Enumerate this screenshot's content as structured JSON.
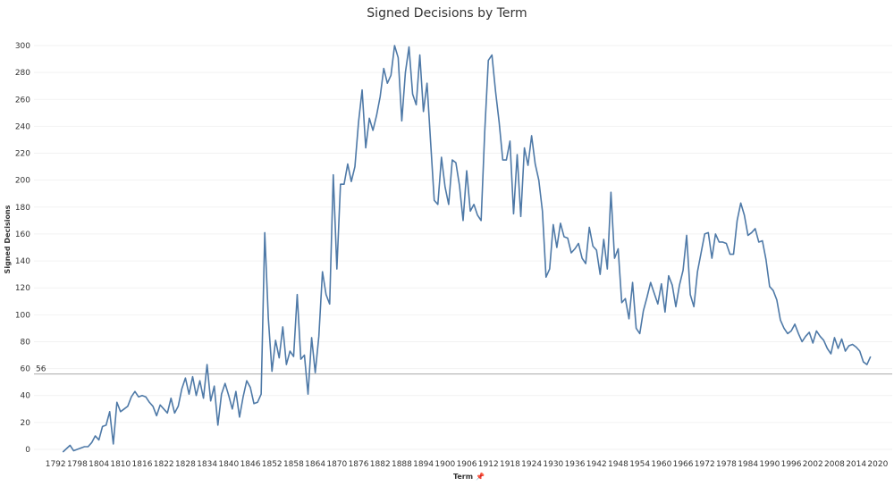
{
  "chart_data": {
    "type": "line",
    "title": "Signed Decisions by Term",
    "xlabel": "Term",
    "xlabel_icon": "pin-icon",
    "ylabel": "Signed Decisions",
    "ylim": [
      0,
      310
    ],
    "xlim": [
      1786,
      2024
    ],
    "x_ticks": [
      1792,
      1798,
      1804,
      1810,
      1816,
      1822,
      1828,
      1834,
      1840,
      1846,
      1852,
      1858,
      1864,
      1870,
      1876,
      1882,
      1888,
      1894,
      1900,
      1906,
      1912,
      1918,
      1924,
      1930,
      1936,
      1942,
      1948,
      1954,
      1960,
      1966,
      1972,
      1978,
      1984,
      1990,
      1996,
      2002,
      2008,
      2014,
      2020
    ],
    "y_ticks": [
      0,
      20,
      40,
      60,
      80,
      100,
      120,
      140,
      160,
      180,
      200,
      220,
      240,
      260,
      280,
      300
    ],
    "grid": true,
    "line_color": "#4e79a7",
    "reference_line": {
      "value": 56,
      "label": "56",
      "color": "#aaaaaa"
    },
    "series": [
      {
        "x": [
          1794,
          1796,
          1797,
          1798,
          1799,
          1800,
          1801,
          1802,
          1803,
          1804,
          1805,
          1806,
          1807,
          1808,
          1809,
          1810,
          1811,
          1812,
          1813,
          1814,
          1815,
          1816,
          1817,
          1818,
          1819,
          1820,
          1821,
          1822,
          1823,
          1824,
          1825,
          1826,
          1827,
          1828,
          1829,
          1830,
          1831,
          1832,
          1833,
          1834,
          1835,
          1836,
          1837,
          1838,
          1839,
          1840,
          1841,
          1842,
          1843,
          1844,
          1845,
          1846,
          1847,
          1848,
          1849,
          1850,
          1851,
          1852,
          1853,
          1854,
          1855,
          1856,
          1857,
          1858,
          1859,
          1860,
          1861,
          1862,
          1863,
          1864,
          1865,
          1866,
          1867,
          1868,
          1869,
          1870,
          1871,
          1872,
          1873,
          1874,
          1875,
          1876,
          1877,
          1878,
          1879,
          1880,
          1881,
          1882,
          1883,
          1884,
          1885,
          1886,
          1887,
          1888,
          1889,
          1890,
          1891,
          1892,
          1893,
          1894,
          1895,
          1896,
          1897,
          1898,
          1899,
          1900,
          1901,
          1902,
          1903,
          1904,
          1905,
          1906,
          1907,
          1908,
          1909,
          1910,
          1911,
          1912,
          1913,
          1914,
          1915,
          1916,
          1917,
          1918,
          1919,
          1920,
          1921,
          1922,
          1923,
          1924,
          1925,
          1926,
          1927,
          1928,
          1929,
          1930,
          1931,
          1932,
          1933,
          1934,
          1935,
          1936,
          1937,
          1938,
          1939,
          1940,
          1941,
          1942,
          1943,
          1944,
          1945,
          1946,
          1947,
          1948,
          1949,
          1950,
          1951,
          1952,
          1953,
          1954,
          1955,
          1956,
          1957,
          1958,
          1959,
          1960,
          1961,
          1962,
          1963,
          1964,
          1965,
          1966,
          1967,
          1968,
          1969,
          1970,
          1971,
          1972,
          1973,
          1974,
          1975,
          1976,
          1977,
          1978,
          1979,
          1980,
          1981,
          1982,
          1983,
          1984,
          1985,
          1986,
          1987,
          1988,
          1989,
          1990,
          1991,
          1992,
          1993,
          1994,
          1995,
          1996,
          1997,
          1998,
          1999,
          2000,
          2001,
          2002,
          2003,
          2004,
          2005,
          2006,
          2007,
          2008,
          2009,
          2010,
          2011,
          2012,
          2013,
          2014,
          2015,
          2016,
          2017,
          2018
        ],
        "y": [
          -2,
          3,
          -1,
          0,
          1,
          2,
          2,
          5,
          10,
          7,
          17,
          18,
          28,
          4,
          35,
          28,
          30,
          32,
          39,
          43,
          39,
          40,
          39,
          35,
          32,
          25,
          33,
          30,
          27,
          38,
          27,
          32,
          45,
          53,
          41,
          54,
          40,
          51,
          38,
          63,
          36,
          47,
          18,
          41,
          49,
          40,
          30,
          43,
          24,
          39,
          51,
          46,
          34,
          35,
          41,
          161,
          97,
          58,
          81,
          68,
          91,
          63,
          73,
          69,
          115,
          67,
          70,
          41,
          83,
          57,
          84,
          132,
          115,
          108,
          204,
          134,
          197,
          197,
          212,
          199,
          210,
          243,
          267,
          224,
          246,
          237,
          248,
          262,
          283,
          272,
          278,
          300,
          291,
          244,
          280,
          299,
          264,
          256,
          293,
          251,
          272,
          228,
          185,
          182,
          217,
          195,
          182,
          215,
          213,
          196,
          170,
          207,
          177,
          182,
          174,
          170,
          236,
          289,
          293,
          266,
          243,
          215,
          215,
          229,
          175,
          219,
          173,
          224,
          211,
          233,
          212,
          200,
          177,
          128,
          134,
          167,
          150,
          168,
          158,
          157,
          146,
          149,
          153,
          142,
          138,
          165,
          151,
          148,
          130,
          156,
          134,
          191,
          142,
          149,
          109,
          112,
          97,
          124,
          90,
          86,
          103,
          113,
          124,
          116,
          108,
          123,
          102,
          129,
          122,
          106,
          122,
          133,
          159,
          115,
          106,
          132,
          146,
          160,
          161,
          142,
          160,
          154,
          154,
          153,
          145,
          145,
          170,
          183,
          174,
          159,
          161,
          164,
          154,
          155,
          141,
          121,
          118,
          111,
          96,
          90,
          86,
          88,
          93,
          86,
          80,
          84,
          87,
          79,
          88,
          84,
          81,
          75,
          71,
          83,
          75,
          82,
          73,
          77,
          78,
          76,
          73,
          65,
          63,
          69
        ]
      }
    ]
  }
}
